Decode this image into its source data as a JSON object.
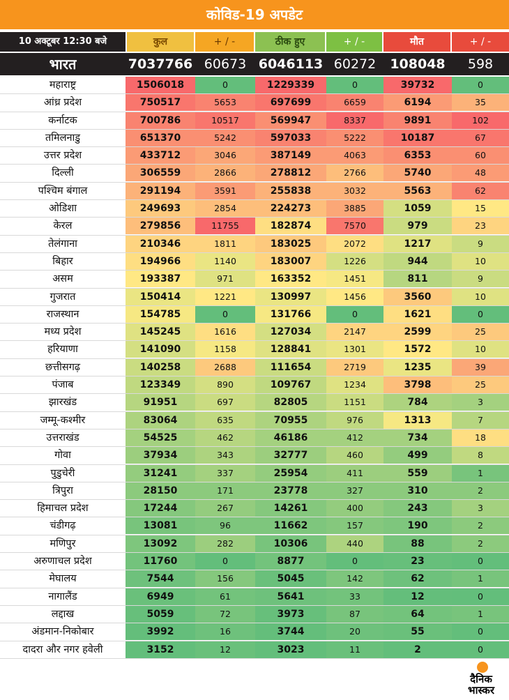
{
  "title": "कोविड-19 अपडेट",
  "header": {
    "date": "10 अक्टूबर 12:30 बजे",
    "total": "कुल",
    "pm1": "+ / -",
    "recovered": "ठीक हुए",
    "pm2": "+ / -",
    "deaths": "मौत",
    "pm3": "+ / -"
  },
  "national": {
    "name": "भारत",
    "total": "7037766",
    "total_change": "60673",
    "recovered": "6046113",
    "recovered_change": "60272",
    "deaths": "108048",
    "deaths_change": "598"
  },
  "rows": [
    [
      "महाराष्ट्र",
      "1506018",
      "0",
      "1229339",
      "0",
      "39732",
      "0"
    ],
    [
      "आंध्र प्रदेश",
      "750517",
      "5653",
      "697699",
      "6659",
      "6194",
      "35"
    ],
    [
      "कर्नाटक",
      "700786",
      "10517",
      "569947",
      "8337",
      "9891",
      "102"
    ],
    [
      "तमिलनाडु",
      "651370",
      "5242",
      "597033",
      "5222",
      "10187",
      "67"
    ],
    [
      "उत्तर प्रदेश",
      "433712",
      "3046",
      "387149",
      "4063",
      "6353",
      "60"
    ],
    [
      "दिल्ली",
      "306559",
      "2866",
      "278812",
      "2766",
      "5740",
      "48"
    ],
    [
      "पश्चिम बंगाल",
      "291194",
      "3591",
      "255838",
      "3032",
      "5563",
      "62"
    ],
    [
      "ओडिशा",
      "249693",
      "2854",
      "224273",
      "3885",
      "1059",
      "15"
    ],
    [
      "केरल",
      "279856",
      "11755",
      "182874",
      "7570",
      "979",
      "23"
    ],
    [
      "तेलंगाना",
      "210346",
      "1811",
      "183025",
      "2072",
      "1217",
      "9"
    ],
    [
      "बिहार",
      "194966",
      "1140",
      "183007",
      "1226",
      "944",
      "10"
    ],
    [
      "असम",
      "193387",
      "971",
      "163352",
      "1451",
      "811",
      "9"
    ],
    [
      "गुजरात",
      "150414",
      "1221",
      "130997",
      "1456",
      "3560",
      "10"
    ],
    [
      "राजस्थान",
      "154785",
      "0",
      "131766",
      "0",
      "1621",
      "0"
    ],
    [
      "मध्य प्रदेश",
      "145245",
      "1616",
      "127034",
      "2147",
      "2599",
      "25"
    ],
    [
      "हरियाणा",
      "141090",
      "1158",
      "128841",
      "1301",
      "1572",
      "10"
    ],
    [
      "छत्तीसगढ़",
      "140258",
      "2688",
      "111654",
      "2719",
      "1235",
      "39"
    ],
    [
      "पंजाब",
      "123349",
      "890",
      "109767",
      "1234",
      "3798",
      "25"
    ],
    [
      "झारखंड",
      "91951",
      "697",
      "82805",
      "1151",
      "784",
      "3"
    ],
    [
      "जम्मू-कश्मीर",
      "83064",
      "635",
      "70955",
      "976",
      "1313",
      "7"
    ],
    [
      "उत्तराखंड",
      "54525",
      "462",
      "46186",
      "412",
      "734",
      "18"
    ],
    [
      "गोवा",
      "37934",
      "343",
      "32777",
      "460",
      "499",
      "8"
    ],
    [
      "पुडुचेरी",
      "31241",
      "337",
      "25954",
      "411",
      "559",
      "1"
    ],
    [
      "त्रिपुरा",
      "28150",
      "171",
      "23778",
      "327",
      "310",
      "2"
    ],
    [
      "हिमाचल प्रदेश",
      "17244",
      "267",
      "14261",
      "400",
      "243",
      "3"
    ],
    [
      "चंडीगढ़",
      "13081",
      "96",
      "11662",
      "157",
      "190",
      "2"
    ],
    [
      "मणिपुर",
      "13092",
      "282",
      "10306",
      "440",
      "88",
      "2"
    ],
    [
      "अरुणाचल प्रदेश",
      "11760",
      "0",
      "8877",
      "0",
      "23",
      "0"
    ],
    [
      "मेघालय",
      "7544",
      "156",
      "5045",
      "142",
      "62",
      "1"
    ],
    [
      "नागालैंड",
      "6949",
      "61",
      "5641",
      "33",
      "12",
      "0"
    ],
    [
      "लद्दाख",
      "5059",
      "72",
      "3973",
      "87",
      "64",
      "1"
    ],
    [
      "अंडमान-निकोबार",
      "3992",
      "16",
      "3744",
      "20",
      "55",
      "0"
    ],
    [
      "दादरा और नगर हवेली",
      "3152",
      "12",
      "3023",
      "11",
      "2",
      "0"
    ]
  ],
  "logo": {
    "line1": "दैनिक",
    "line2": "भास्कर"
  }
}
